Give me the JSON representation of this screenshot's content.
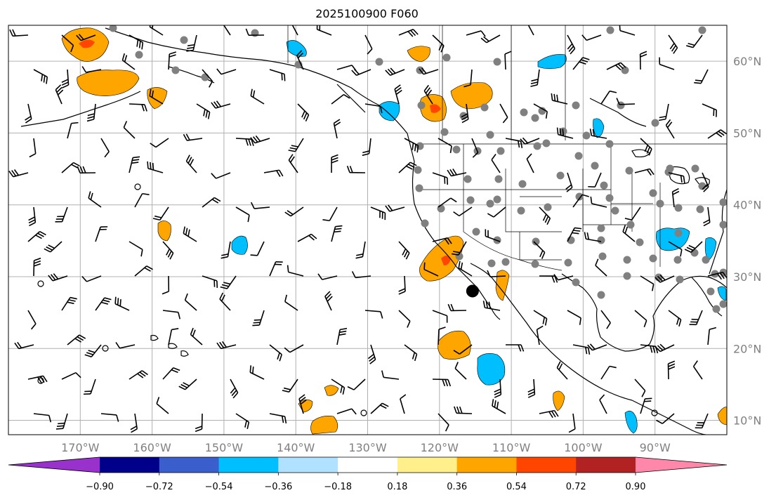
{
  "title": "2025100900 F060",
  "map": {
    "projection": "plate-carree",
    "lon_range": [
      -180,
      -80
    ],
    "lat_range": [
      8,
      65
    ],
    "gridlines": true,
    "lat_ticks": [
      {
        "value": 60,
        "label": "60°N"
      },
      {
        "value": 50,
        "label": "50°N"
      },
      {
        "value": 40,
        "label": "40°N"
      },
      {
        "value": 30,
        "label": "30°N"
      },
      {
        "value": 20,
        "label": "20°N"
      },
      {
        "value": 10,
        "label": "10°N"
      }
    ],
    "lon_ticks": [
      {
        "value": -170,
        "label": "170°W"
      },
      {
        "value": -160,
        "label": "160°W"
      },
      {
        "value": -150,
        "label": "150°W"
      },
      {
        "value": -140,
        "label": "140°W"
      },
      {
        "value": -130,
        "label": "130°W"
      },
      {
        "value": -120,
        "label": "120°W"
      },
      {
        "value": -110,
        "label": "110°W"
      },
      {
        "value": -100,
        "label": "100°W"
      },
      {
        "value": -90,
        "label": "90°W"
      }
    ],
    "marker": {
      "lon": -115.4,
      "lat": 28.0,
      "color": "#000000"
    }
  },
  "colorbar": {
    "colors": [
      "#9932cc",
      "#00008b",
      "#3a5fcd",
      "#00bfff",
      "#b0e2ff",
      "#ffffff",
      "#fff08b",
      "#ffa500",
      "#ff4500",
      "#b22222",
      "#ff88aa"
    ],
    "tick_labels": [
      "−0.90",
      "−0.72",
      "−0.54",
      "−0.36",
      "−0.18",
      "0.18",
      "0.36",
      "0.54",
      "0.72",
      "0.90"
    ]
  },
  "colors": {
    "grid": "#b0b0b0",
    "coast": "#000000",
    "station": "#808080"
  }
}
